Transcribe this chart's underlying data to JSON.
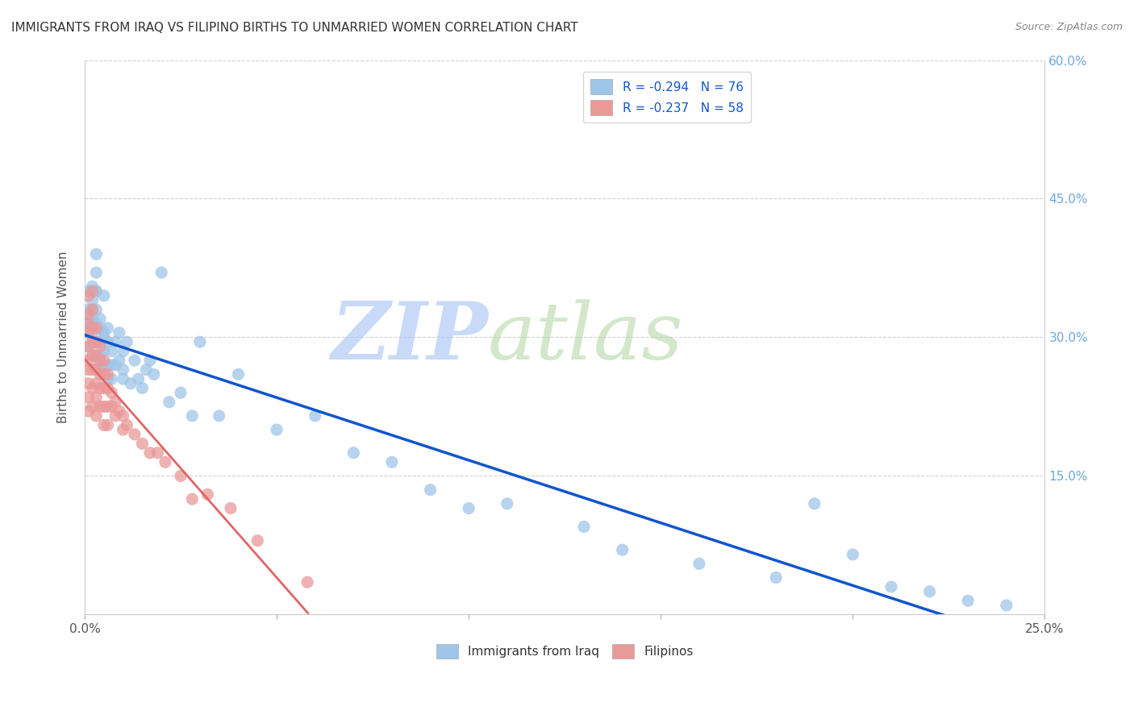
{
  "title": "IMMIGRANTS FROM IRAQ VS FILIPINO BIRTHS TO UNMARRIED WOMEN CORRELATION CHART",
  "source_text": "Source: ZipAtlas.com",
  "ylabel": "Births to Unmarried Women",
  "xmin": 0.0,
  "xmax": 0.25,
  "ymin": 0.0,
  "ymax": 0.6,
  "xticks": [
    0.0,
    0.05,
    0.1,
    0.15,
    0.2,
    0.25
  ],
  "yticks": [
    0.0,
    0.15,
    0.3,
    0.45,
    0.6
  ],
  "xtick_labels": [
    "0.0%",
    "",
    "",
    "",
    "",
    "25.0%"
  ],
  "ytick_labels_right": [
    "",
    "15.0%",
    "30.0%",
    "45.0%",
    "60.0%"
  ],
  "legend_label1": "R = -0.294   N = 76",
  "legend_label2": "R = -0.237   N = 58",
  "legend_xlabel1": "Immigrants from Iraq",
  "legend_xlabel2": "Filipinos",
  "color_blue": "#9fc5e8",
  "color_pink": "#ea9999",
  "color_blue_line": "#1155cc",
  "color_pink_line": "#e06666",
  "watermark_zip": "ZIP",
  "watermark_atlas": "atlas",
  "watermark_color_zip": "#a4c2f4",
  "watermark_color_atlas": "#b6d7a8",
  "iraq_x": [
    0.001,
    0.001,
    0.001,
    0.001,
    0.001,
    0.002,
    0.002,
    0.002,
    0.002,
    0.002,
    0.002,
    0.002,
    0.003,
    0.003,
    0.003,
    0.003,
    0.003,
    0.003,
    0.003,
    0.003,
    0.004,
    0.004,
    0.004,
    0.004,
    0.004,
    0.005,
    0.005,
    0.005,
    0.005,
    0.005,
    0.006,
    0.006,
    0.006,
    0.006,
    0.007,
    0.007,
    0.007,
    0.008,
    0.008,
    0.009,
    0.009,
    0.01,
    0.01,
    0.01,
    0.011,
    0.012,
    0.013,
    0.014,
    0.015,
    0.016,
    0.017,
    0.018,
    0.02,
    0.022,
    0.025,
    0.028,
    0.03,
    0.035,
    0.04,
    0.05,
    0.06,
    0.07,
    0.08,
    0.09,
    0.1,
    0.11,
    0.13,
    0.14,
    0.16,
    0.18,
    0.19,
    0.2,
    0.21,
    0.22,
    0.23,
    0.24
  ],
  "iraq_y": [
    0.35,
    0.32,
    0.33,
    0.31,
    0.29,
    0.355,
    0.34,
    0.33,
    0.305,
    0.32,
    0.295,
    0.28,
    0.35,
    0.33,
    0.315,
    0.295,
    0.28,
    0.35,
    0.37,
    0.39,
    0.32,
    0.295,
    0.28,
    0.27,
    0.31,
    0.345,
    0.305,
    0.285,
    0.265,
    0.3,
    0.31,
    0.295,
    0.27,
    0.255,
    0.285,
    0.27,
    0.255,
    0.295,
    0.27,
    0.305,
    0.275,
    0.285,
    0.265,
    0.255,
    0.295,
    0.25,
    0.275,
    0.255,
    0.245,
    0.265,
    0.275,
    0.26,
    0.37,
    0.23,
    0.24,
    0.215,
    0.295,
    0.215,
    0.26,
    0.2,
    0.215,
    0.175,
    0.165,
    0.135,
    0.115,
    0.12,
    0.095,
    0.07,
    0.055,
    0.04,
    0.12,
    0.065,
    0.03,
    0.025,
    0.015,
    0.01
  ],
  "filipino_x": [
    0.001,
    0.001,
    0.001,
    0.001,
    0.001,
    0.001,
    0.001,
    0.001,
    0.001,
    0.001,
    0.002,
    0.002,
    0.002,
    0.002,
    0.002,
    0.002,
    0.002,
    0.002,
    0.003,
    0.003,
    0.003,
    0.003,
    0.003,
    0.003,
    0.003,
    0.004,
    0.004,
    0.004,
    0.004,
    0.004,
    0.005,
    0.005,
    0.005,
    0.005,
    0.005,
    0.006,
    0.006,
    0.006,
    0.006,
    0.007,
    0.007,
    0.008,
    0.008,
    0.009,
    0.01,
    0.01,
    0.011,
    0.013,
    0.015,
    0.017,
    0.019,
    0.021,
    0.025,
    0.028,
    0.032,
    0.038,
    0.045,
    0.058
  ],
  "filipino_y": [
    0.345,
    0.325,
    0.315,
    0.305,
    0.29,
    0.275,
    0.265,
    0.25,
    0.235,
    0.22,
    0.35,
    0.33,
    0.31,
    0.295,
    0.28,
    0.265,
    0.245,
    0.225,
    0.31,
    0.295,
    0.28,
    0.265,
    0.25,
    0.235,
    0.215,
    0.29,
    0.275,
    0.26,
    0.245,
    0.225,
    0.275,
    0.26,
    0.245,
    0.225,
    0.205,
    0.26,
    0.245,
    0.225,
    0.205,
    0.24,
    0.225,
    0.23,
    0.215,
    0.22,
    0.215,
    0.2,
    0.205,
    0.195,
    0.185,
    0.175,
    0.175,
    0.165,
    0.15,
    0.125,
    0.13,
    0.115,
    0.08,
    0.035
  ],
  "figsize": [
    14.06,
    8.92
  ],
  "dpi": 100
}
